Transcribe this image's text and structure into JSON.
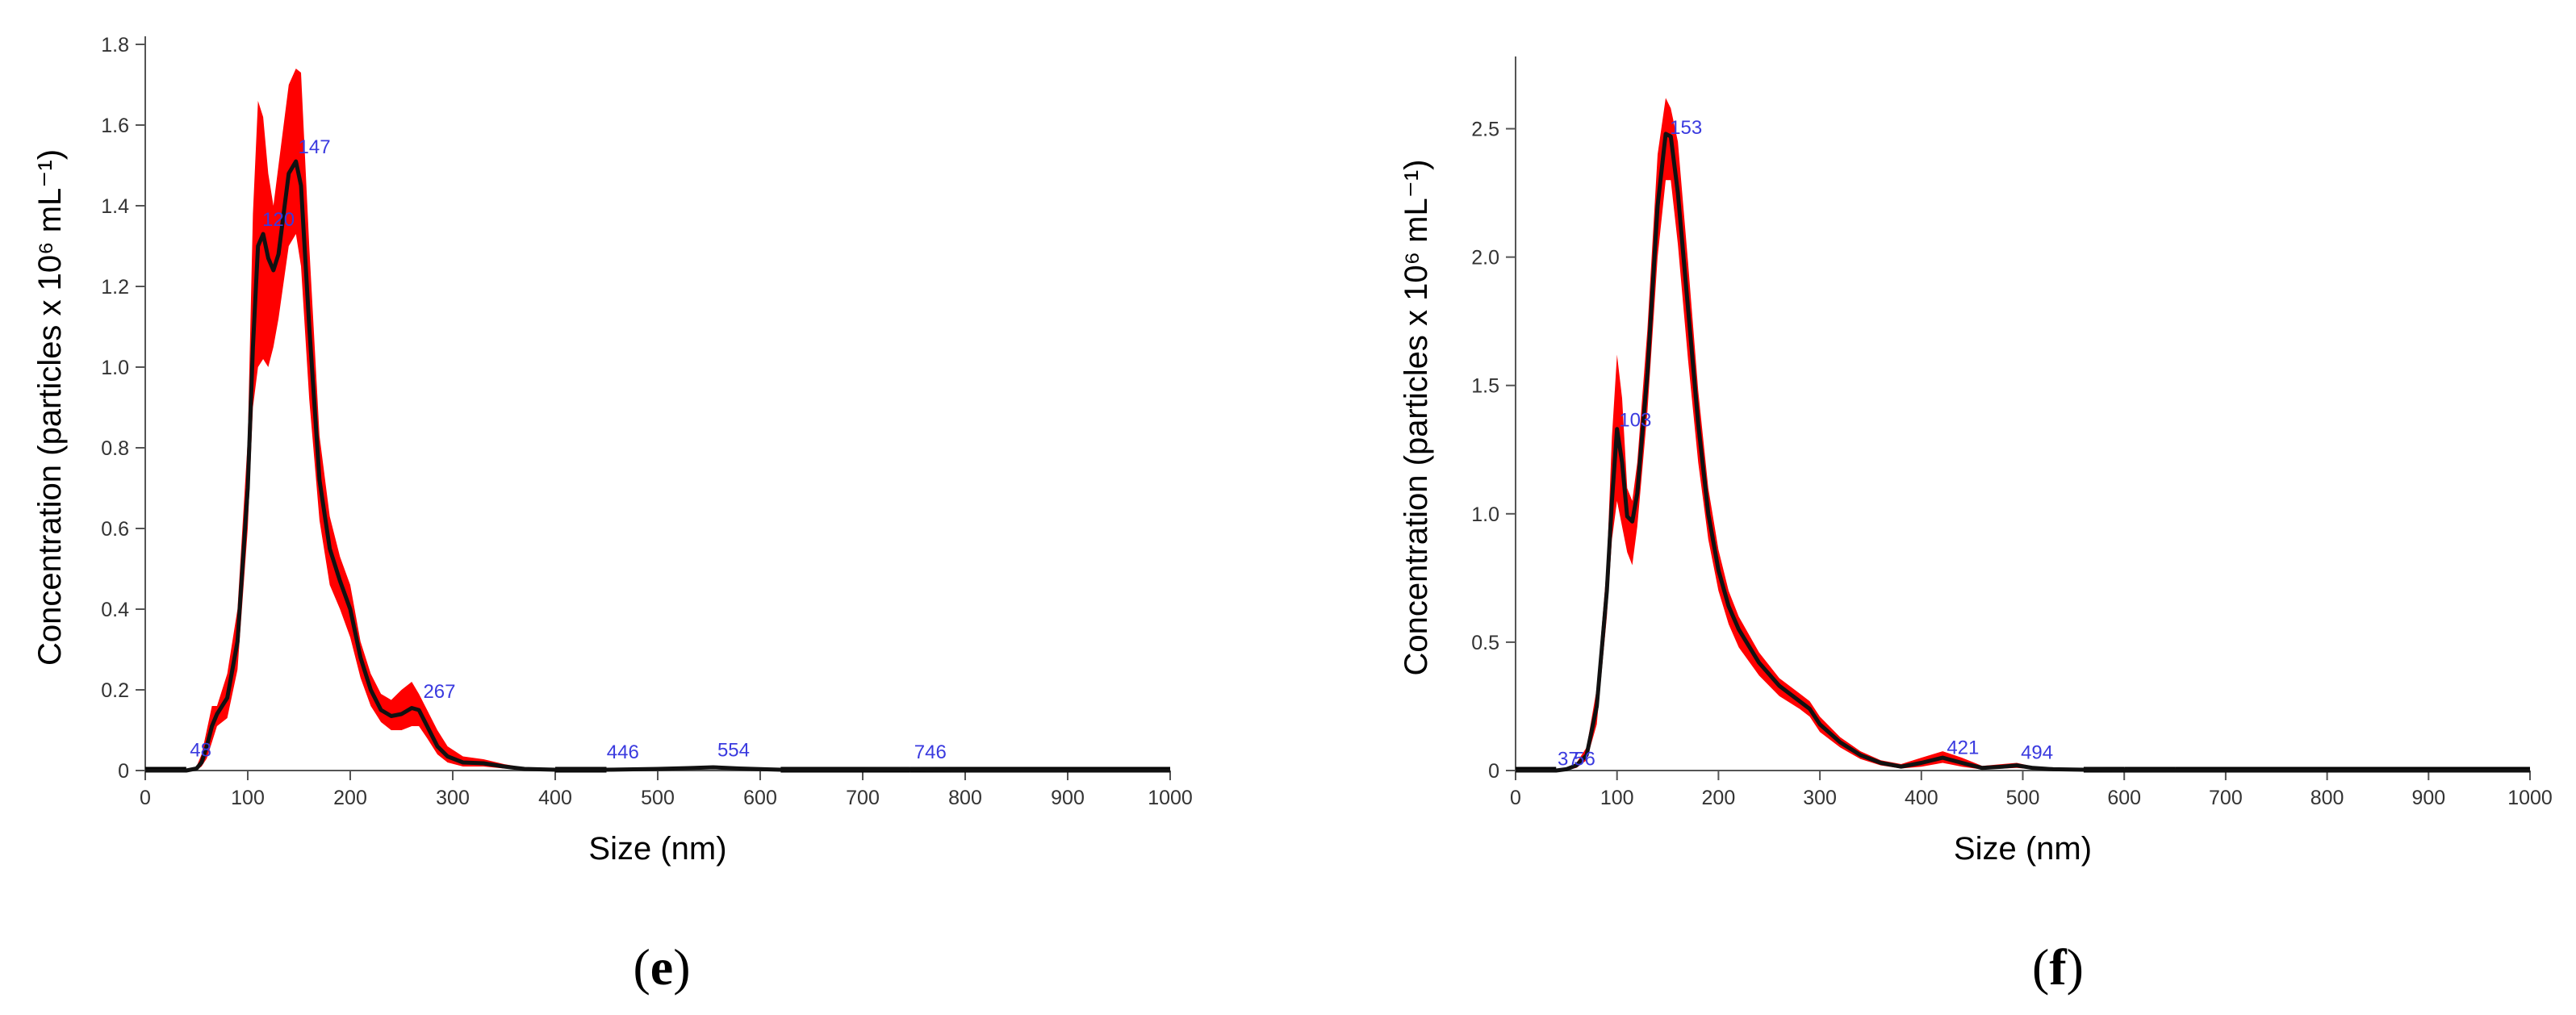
{
  "chart_data": [
    {
      "type": "area",
      "panel_label": "e",
      "xlabel": "Size (nm)",
      "ylabel": "Concentration (particles x 10⁶ mL⁻¹)",
      "xlim": [
        0,
        1000
      ],
      "ylim": [
        0,
        1.8
      ],
      "x_ticks": [
        0,
        100,
        200,
        300,
        400,
        500,
        600,
        700,
        800,
        900,
        1000
      ],
      "y_ticks": [
        0,
        0.2,
        0.4,
        0.6,
        0.8,
        1.0,
        1.2,
        1.4,
        1.6,
        1.8
      ],
      "y_tick_labels": [
        "0",
        "0.2",
        "0.4",
        "0.6",
        "0.8",
        "1.0",
        "1.2",
        "1.4",
        "1.6",
        "1.8"
      ],
      "colors": {
        "band": "#ff0000",
        "mean": "#111111",
        "peak_label": "#3a3adf"
      },
      "series": [
        {
          "x": [
            0,
            40,
            50,
            55,
            60,
            65,
            70,
            80,
            90,
            100,
            105,
            110,
            115,
            120,
            125,
            130,
            140,
            147,
            152,
            160,
            170,
            180,
            190,
            200,
            210,
            220,
            230,
            240,
            250,
            260,
            267,
            275,
            285,
            295,
            310,
            330,
            350,
            370,
            400,
            450,
            500,
            530,
            554,
            580,
            620,
            700,
            746,
            800,
            1000
          ],
          "mean": [
            0,
            0,
            0.005,
            0.02,
            0.06,
            0.11,
            0.14,
            0.18,
            0.32,
            0.7,
            1.05,
            1.3,
            1.33,
            1.27,
            1.24,
            1.28,
            1.48,
            1.51,
            1.45,
            1.1,
            0.72,
            0.55,
            0.47,
            0.4,
            0.28,
            0.2,
            0.15,
            0.135,
            0.14,
            0.155,
            0.15,
            0.11,
            0.06,
            0.035,
            0.02,
            0.018,
            0.01,
            0.004,
            0.002,
            0.002,
            0.004,
            0.006,
            0.008,
            0.005,
            0.002,
            0.002,
            0.003,
            0.001,
            0
          ],
          "upper": [
            0,
            0,
            0.01,
            0.04,
            0.1,
            0.16,
            0.16,
            0.24,
            0.4,
            0.82,
            1.38,
            1.66,
            1.62,
            1.48,
            1.4,
            1.5,
            1.7,
            1.74,
            1.73,
            1.3,
            0.83,
            0.63,
            0.53,
            0.46,
            0.32,
            0.24,
            0.19,
            0.175,
            0.2,
            0.22,
            0.19,
            0.15,
            0.1,
            0.06,
            0.035,
            0.028,
            0.016,
            0.007,
            0.004,
            0.004,
            0.007,
            0.01,
            0.012,
            0.008,
            0.003,
            0.003,
            0.004,
            0.002,
            0
          ],
          "lower": [
            0,
            0,
            0.001,
            0.01,
            0.03,
            0.07,
            0.11,
            0.13,
            0.25,
            0.6,
            0.9,
            1.0,
            1.02,
            1.0,
            1.05,
            1.12,
            1.3,
            1.33,
            1.25,
            0.92,
            0.62,
            0.46,
            0.4,
            0.33,
            0.23,
            0.16,
            0.12,
            0.1,
            0.1,
            0.11,
            0.11,
            0.08,
            0.04,
            0.02,
            0.01,
            0.01,
            0.005,
            0.002,
            0.001,
            0.001,
            0.002,
            0.003,
            0.005,
            0.003,
            0.001,
            0.001,
            0.002,
            0,
            0
          ]
        }
      ],
      "annotations": [
        {
          "text": "48",
          "x": 54,
          "y": 0.035
        },
        {
          "text": "120",
          "x": 130,
          "y": 1.35
        },
        {
          "text": "147",
          "x": 165,
          "y": 1.53
        },
        {
          "text": "267",
          "x": 287,
          "y": 0.18
        },
        {
          "text": "446",
          "x": 466,
          "y": 0.03
        },
        {
          "text": "554",
          "x": 574,
          "y": 0.035
        },
        {
          "text": "746",
          "x": 766,
          "y": 0.03
        }
      ]
    },
    {
      "type": "area",
      "panel_label": "f",
      "xlabel": "Size (nm)",
      "ylabel": "Concentration (particles x 10⁶ mL⁻¹)",
      "xlim": [
        0,
        1000
      ],
      "ylim": [
        0,
        2.75
      ],
      "x_ticks": [
        0,
        100,
        200,
        300,
        400,
        500,
        600,
        700,
        800,
        900,
        1000
      ],
      "y_ticks": [
        0,
        0.5,
        1.0,
        1.5,
        2.0,
        2.5
      ],
      "y_tick_labels": [
        "0",
        "0.5",
        "1.0",
        "1.5",
        "2.0",
        "2.5"
      ],
      "colors": {
        "band": "#ff0000",
        "mean": "#111111",
        "peak_label": "#3a3adf"
      },
      "series": [
        {
          "x": [
            0,
            40,
            50,
            60,
            70,
            80,
            90,
            95,
            100,
            105,
            110,
            115,
            120,
            130,
            140,
            148,
            153,
            160,
            170,
            180,
            190,
            200,
            210,
            220,
            240,
            260,
            280,
            290,
            300,
            320,
            340,
            360,
            380,
            400,
            421,
            440,
            460,
            480,
            494,
            510,
            530,
            560,
            600,
            650,
            1000
          ],
          "mean": [
            0,
            0,
            0.005,
            0.02,
            0.06,
            0.25,
            0.7,
            1.05,
            1.33,
            1.2,
            0.99,
            0.97,
            1.08,
            1.55,
            2.2,
            2.48,
            2.47,
            2.25,
            1.8,
            1.35,
            1.0,
            0.78,
            0.64,
            0.55,
            0.42,
            0.33,
            0.27,
            0.24,
            0.18,
            0.11,
            0.06,
            0.03,
            0.015,
            0.03,
            0.05,
            0.03,
            0.01,
            0.015,
            0.02,
            0.01,
            0.005,
            0.003,
            0.002,
            0.001,
            0
          ],
          "upper": [
            0,
            0,
            0.01,
            0.03,
            0.09,
            0.32,
            0.8,
            1.3,
            1.62,
            1.45,
            1.1,
            1.05,
            1.2,
            1.72,
            2.4,
            2.62,
            2.58,
            2.45,
            1.98,
            1.48,
            1.1,
            0.86,
            0.7,
            0.6,
            0.46,
            0.36,
            0.3,
            0.27,
            0.21,
            0.13,
            0.075,
            0.04,
            0.025,
            0.05,
            0.075,
            0.05,
            0.018,
            0.025,
            0.03,
            0.016,
            0.008,
            0.005,
            0.003,
            0.002,
            0
          ],
          "lower": [
            0,
            0,
            0.001,
            0.01,
            0.04,
            0.18,
            0.6,
            0.9,
            1.05,
            0.95,
            0.85,
            0.8,
            0.95,
            1.4,
            2.0,
            2.3,
            2.3,
            2.05,
            1.6,
            1.2,
            0.9,
            0.7,
            0.57,
            0.48,
            0.37,
            0.29,
            0.24,
            0.21,
            0.15,
            0.09,
            0.045,
            0.02,
            0.008,
            0.015,
            0.03,
            0.015,
            0.004,
            0.008,
            0.01,
            0.005,
            0.002,
            0.001,
            0.001,
            0,
            0
          ]
        }
      ],
      "annotations": [
        {
          "text": "37",
          "x": 52,
          "y": 0.02
        },
        {
          "text": "56",
          "x": 68,
          "y": 0.02
        },
        {
          "text": "103",
          "x": 118,
          "y": 1.34
        },
        {
          "text": "153",
          "x": 168,
          "y": 2.48
        },
        {
          "text": "421",
          "x": 441,
          "y": 0.065
        },
        {
          "text": "494",
          "x": 514,
          "y": 0.045
        }
      ]
    }
  ]
}
